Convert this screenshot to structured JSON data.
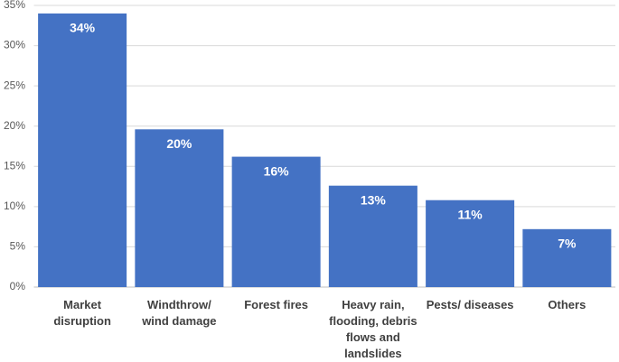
{
  "chart_data": {
    "type": "bar",
    "categories": [
      "Market disruption",
      "Windthrow/ wind damage",
      "Forest fires",
      "Heavy rain, flooding, debris flows and landslides",
      "Pests/ diseases",
      "Others"
    ],
    "values": [
      34,
      19.6,
      16.2,
      12.6,
      10.8,
      7.2
    ],
    "value_labels": [
      "34%",
      "20%",
      "16%",
      "13%",
      "11%",
      "7%"
    ],
    "color": "#4472c4",
    "ylim": [
      0,
      35
    ],
    "yticks": [
      {
        "value": 0,
        "label": "0%"
      },
      {
        "value": 5,
        "label": "5%"
      },
      {
        "value": 10,
        "label": "10%"
      },
      {
        "value": 15,
        "label": "15%"
      },
      {
        "value": 20,
        "label": "20%"
      },
      {
        "value": 25,
        "label": "25%"
      },
      {
        "value": 30,
        "label": "30%"
      },
      {
        "value": 35,
        "label": "35%"
      }
    ],
    "grid": true
  }
}
